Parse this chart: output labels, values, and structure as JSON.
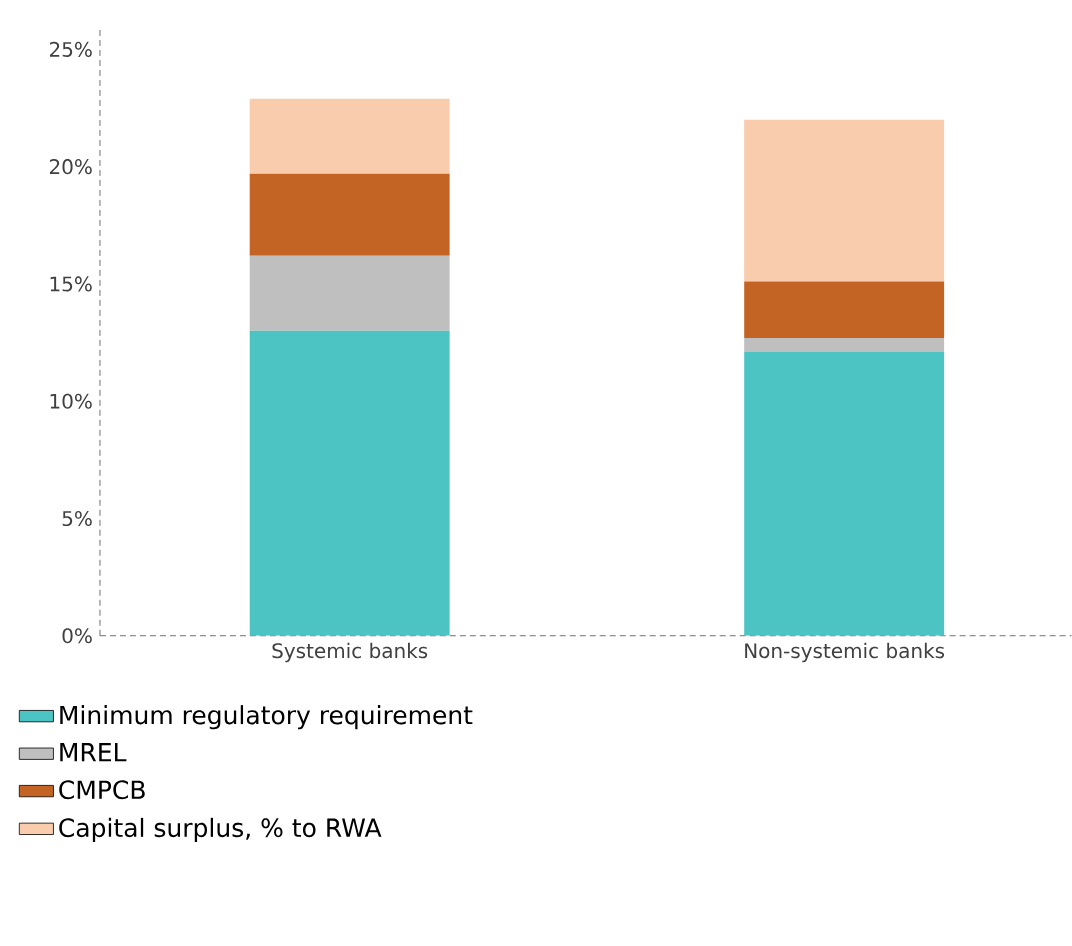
{
  "chart_data": {
    "type": "bar",
    "stacked": true,
    "categories": [
      "Systemic banks",
      "Non-systemic banks"
    ],
    "series": [
      {
        "name": "Minimum regulatory requirement",
        "color": "#4cc4c4",
        "values": [
          13.0,
          12.1
        ]
      },
      {
        "name": "MREL",
        "color": "#bfbfbf",
        "values": [
          3.2,
          0.6
        ]
      },
      {
        "name": "CMPCB",
        "color": "#c46424",
        "values": [
          3.5,
          2.4
        ]
      },
      {
        "name": "Capital surplus, % to RWA",
        "color": "#f8ccac",
        "values": [
          3.2,
          6.9
        ]
      }
    ],
    "ylim": [
      0,
      26
    ],
    "yticks": [
      {
        "value": 0,
        "label": "0%"
      },
      {
        "value": 5,
        "label": "5%"
      },
      {
        "value": 10,
        "label": "10%"
      },
      {
        "value": 15,
        "label": "15%"
      },
      {
        "value": 20,
        "label": "20%"
      },
      {
        "value": 25,
        "label": "25%"
      }
    ],
    "legend": "bottom"
  }
}
